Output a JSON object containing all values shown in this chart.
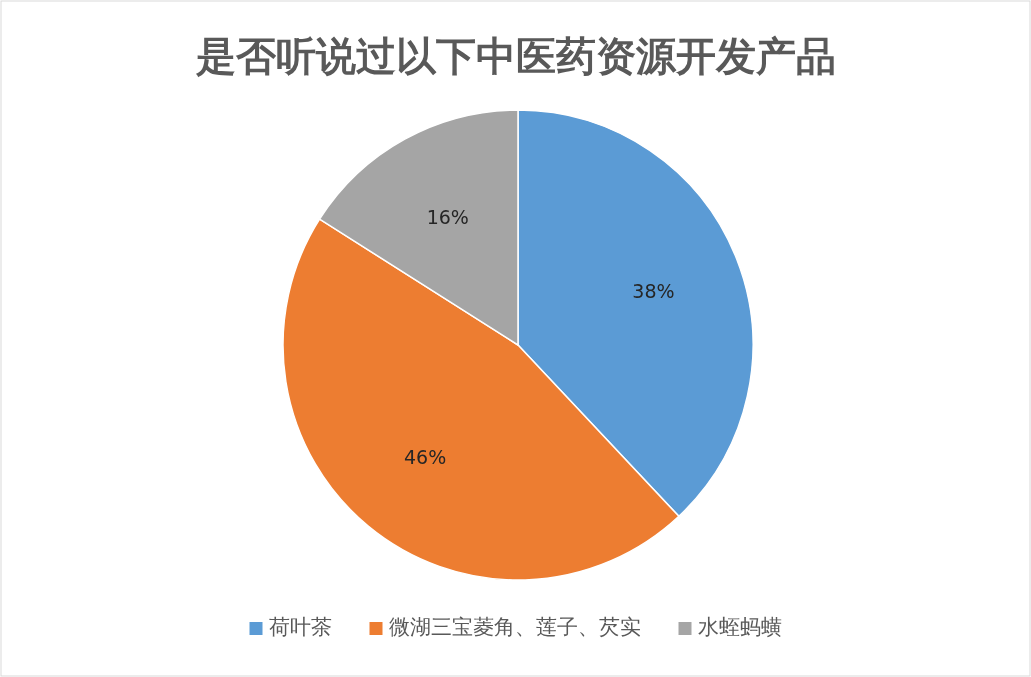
{
  "chart_data": {
    "type": "pie",
    "title": "是否听说过以下中医药资源开发产品",
    "categories": [
      "荷叶茶",
      "微湖三宝菱角、莲子、芡实",
      "水蛭蚂蟥"
    ],
    "values": [
      38,
      46,
      16
    ],
    "colors": [
      "#5b9bd5",
      "#ed7d31",
      "#a5a5a5"
    ],
    "value_labels": [
      "38%",
      "46%",
      "16%"
    ],
    "legend": "bottom"
  }
}
